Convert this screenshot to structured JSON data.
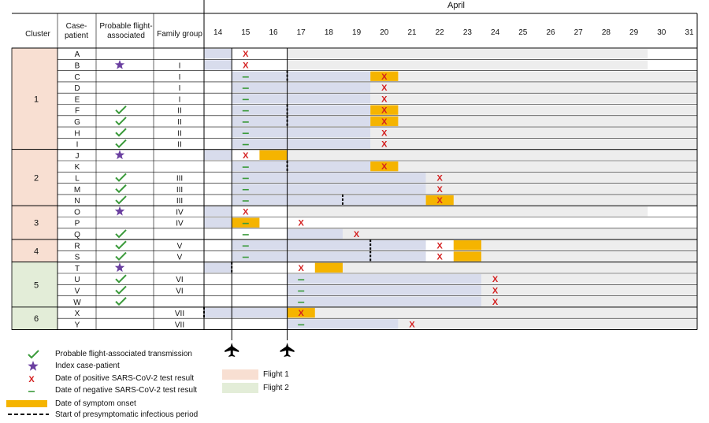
{
  "header": {
    "month": "April",
    "cluster": "Cluster",
    "case_patient": [
      "Case-",
      "patient"
    ],
    "probable": [
      "Probable flight-",
      "associated"
    ],
    "family": "Family group"
  },
  "days": [
    "14",
    "15",
    "16",
    "17",
    "18",
    "19",
    "20",
    "21",
    "22",
    "23",
    "24",
    "25",
    "26",
    "27",
    "28",
    "29",
    "30",
    "31"
  ],
  "clusters": [
    {
      "label": "1",
      "rows": [
        0,
        8
      ],
      "flight": 1
    },
    {
      "label": "2",
      "rows": [
        9,
        13
      ],
      "flight": 1
    },
    {
      "label": "3",
      "rows": [
        14,
        16
      ],
      "flight": 1
    },
    {
      "label": "4",
      "rows": [
        17,
        18
      ],
      "flight": 1
    },
    {
      "label": "5",
      "rows": [
        19,
        22
      ],
      "flight": 2
    },
    {
      "label": "6",
      "rows": [
        23,
        24
      ],
      "flight": 2
    }
  ],
  "patients": [
    {
      "id": "A",
      "mark": "",
      "family": "",
      "shade": [
        14,
        15
      ],
      "bar": [
        17,
        30
      ],
      "pos": [
        15
      ],
      "neg": [],
      "onset": [],
      "pre": null
    },
    {
      "id": "B",
      "mark": "index",
      "family": "I",
      "shade": [
        14,
        15
      ],
      "bar": [
        17,
        30
      ],
      "pos": [
        15
      ],
      "neg": [],
      "onset": [],
      "pre": null
    },
    {
      "id": "C",
      "mark": "",
      "family": "I",
      "shade": [
        15,
        20
      ],
      "bar": [
        20,
        32
      ],
      "pos": [
        20
      ],
      "neg": [
        15
      ],
      "onset": [
        20
      ],
      "pre": 17
    },
    {
      "id": "D",
      "mark": "",
      "family": "I",
      "shade": [
        15,
        20
      ],
      "bar": [
        20,
        32
      ],
      "pos": [
        20
      ],
      "neg": [
        15
      ],
      "onset": [],
      "pre": null
    },
    {
      "id": "E",
      "mark": "",
      "family": "I",
      "shade": [
        15,
        20
      ],
      "bar": [
        20,
        32
      ],
      "pos": [
        20
      ],
      "neg": [
        15
      ],
      "onset": [],
      "pre": null
    },
    {
      "id": "F",
      "mark": "check",
      "family": "II",
      "shade": [
        15,
        20
      ],
      "bar": [
        20,
        32
      ],
      "pos": [
        20
      ],
      "neg": [
        15
      ],
      "onset": [
        20
      ],
      "pre": 17
    },
    {
      "id": "G",
      "mark": "check",
      "family": "II",
      "shade": [
        15,
        20
      ],
      "bar": [
        20,
        32
      ],
      "pos": [
        20
      ],
      "neg": [
        15
      ],
      "onset": [
        20
      ],
      "pre": 17
    },
    {
      "id": "H",
      "mark": "check",
      "family": "II",
      "shade": [
        15,
        20
      ],
      "bar": [
        20,
        32
      ],
      "pos": [
        20
      ],
      "neg": [
        15
      ],
      "onset": [],
      "pre": null
    },
    {
      "id": "I",
      "mark": "check",
      "family": "II",
      "shade": [
        15,
        20
      ],
      "bar": [
        20,
        32
      ],
      "pos": [
        20
      ],
      "neg": [
        15
      ],
      "onset": [],
      "pre": null
    },
    {
      "id": "J",
      "mark": "index",
      "family": "",
      "shade": [
        14,
        15
      ],
      "bar": [
        17,
        32
      ],
      "pos": [
        15
      ],
      "neg": [],
      "onset": [
        16
      ],
      "pre": null
    },
    {
      "id": "K",
      "mark": "",
      "family": "",
      "shade": [
        15,
        20
      ],
      "bar": [
        20,
        32
      ],
      "pos": [
        20
      ],
      "neg": [
        15
      ],
      "onset": [
        20
      ],
      "pre": 17
    },
    {
      "id": "L",
      "mark": "check",
      "family": "III",
      "shade": [
        15,
        22
      ],
      "bar": [
        22,
        32
      ],
      "pos": [
        22
      ],
      "neg": [
        15
      ],
      "onset": [],
      "pre": null
    },
    {
      "id": "M",
      "mark": "check",
      "family": "III",
      "shade": [
        15,
        22
      ],
      "bar": [
        22,
        32
      ],
      "pos": [
        22
      ],
      "neg": [
        15
      ],
      "onset": [],
      "pre": null
    },
    {
      "id": "N",
      "mark": "check",
      "family": "III",
      "shade": [
        15,
        22
      ],
      "bar": [
        22,
        32
      ],
      "pos": [
        22
      ],
      "neg": [
        15
      ],
      "onset": [
        22
      ],
      "pre": 19
    },
    {
      "id": "O",
      "mark": "index",
      "family": "IV",
      "shade": [
        14,
        15
      ],
      "bar": [
        17,
        30
      ],
      "pos": [
        15
      ],
      "neg": [],
      "onset": [],
      "pre": null
    },
    {
      "id": "P",
      "mark": "",
      "family": "IV",
      "shade": [
        14,
        15
      ],
      "bar": [],
      "pos": [
        17
      ],
      "neg": [
        15
      ],
      "onset": [
        15
      ],
      "pre": null
    },
    {
      "id": "Q",
      "mark": "check",
      "family": "",
      "shade": [
        17,
        19
      ],
      "bar": [
        19,
        32
      ],
      "pos": [
        19
      ],
      "neg": [
        15
      ],
      "onset": [],
      "pre": null
    },
    {
      "id": "R",
      "mark": "check",
      "family": "V",
      "shade": [
        15,
        22
      ],
      "bar": [
        23,
        32
      ],
      "pos": [
        22
      ],
      "neg": [
        15
      ],
      "onset": [
        23
      ],
      "pre": 20
    },
    {
      "id": "S",
      "mark": "check",
      "family": "V",
      "shade": [
        15,
        22
      ],
      "bar": [
        23,
        32
      ],
      "pos": [
        22
      ],
      "neg": [
        15
      ],
      "onset": [
        23
      ],
      "pre": 20
    },
    {
      "id": "T",
      "mark": "index",
      "family": "",
      "shade": [
        14,
        15
      ],
      "bar": [
        19,
        32
      ],
      "pos": [
        17
      ],
      "neg": [],
      "onset": [
        18
      ],
      "pre": 15
    },
    {
      "id": "U",
      "mark": "check",
      "family": "VI",
      "shade": [
        17,
        24
      ],
      "bar": [
        24,
        32
      ],
      "pos": [
        24
      ],
      "neg": [
        17
      ],
      "onset": [],
      "pre": null
    },
    {
      "id": "V",
      "mark": "check",
      "family": "VI",
      "shade": [
        17,
        24
      ],
      "bar": [
        24,
        32
      ],
      "pos": [
        24
      ],
      "neg": [
        17
      ],
      "onset": [],
      "pre": null
    },
    {
      "id": "W",
      "mark": "check",
      "family": "",
      "shade": [
        17,
        24
      ],
      "bar": [
        24,
        32
      ],
      "pos": [
        24
      ],
      "neg": [
        17
      ],
      "onset": [],
      "pre": null
    },
    {
      "id": "X",
      "mark": "",
      "family": "VII",
      "shade": [
        14,
        17
      ],
      "bar": [
        18,
        32
      ],
      "pos": [
        17
      ],
      "neg": [],
      "onset": [
        17
      ],
      "pre": 14
    },
    {
      "id": "Y",
      "mark": "",
      "family": "VII",
      "shade": [
        17,
        21
      ],
      "bar": [
        21,
        32
      ],
      "pos": [
        21
      ],
      "neg": [
        17
      ],
      "onset": [],
      "pre": null
    }
  ],
  "flight_days": [
    15,
    17
  ],
  "legend": {
    "check": "Probable flight-associated transmission",
    "index": "Index case-patient",
    "pos": "Date of positive SARS-CoV-2 test result",
    "neg": "Date of negative SARS-CoV-2 test result",
    "onset": "Date of symptom onset",
    "pre": "Start of presymptomatic infectious period",
    "flight1": "Flight 1",
    "flight2": "Flight 2"
  },
  "colors": {
    "flight1": "#f8dfd2",
    "flight2": "#e3edd8",
    "shade": "#d8dcec",
    "bar": "#ededed",
    "onset": "#f5b400",
    "positive": "#d42020",
    "negative": "#3a9a3a",
    "check": "#3a9a3a",
    "star": "#6a3fa0"
  }
}
